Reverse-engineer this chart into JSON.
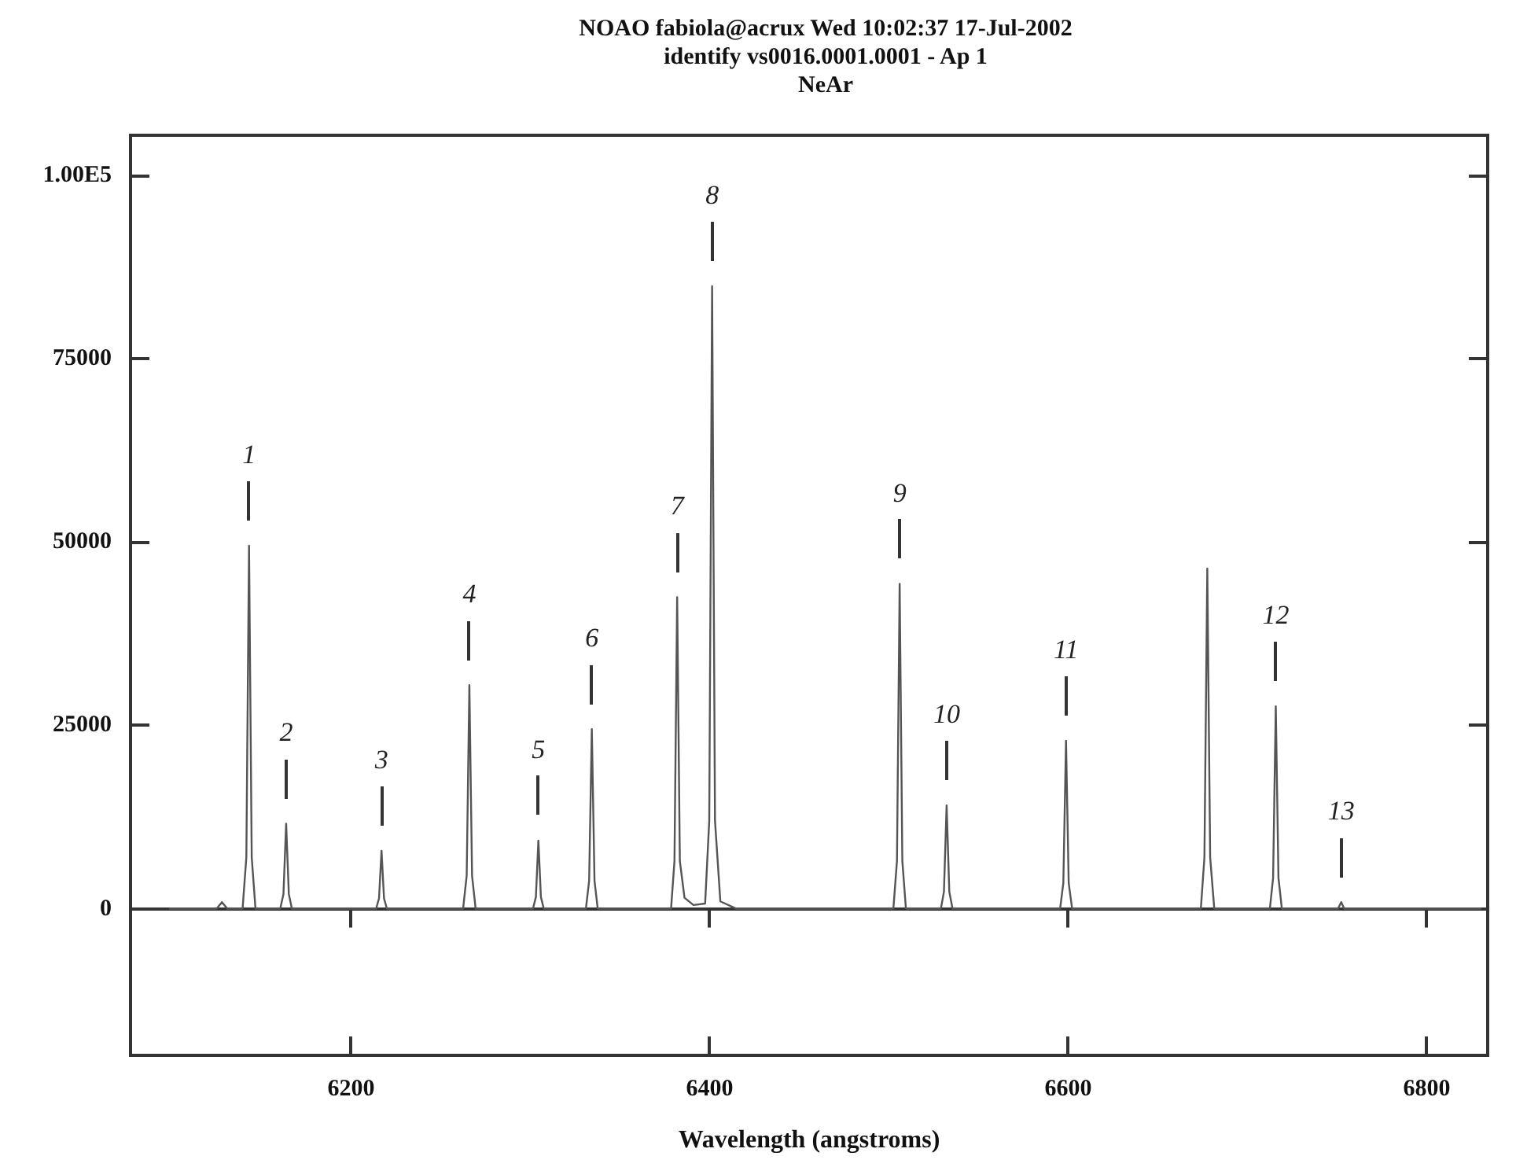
{
  "chart_data": {
    "type": "line",
    "title": "NOAO fabiola@acrux Wed 10:02:37 17-Jul-2002",
    "subtitle": "identify vs0016.0001.0001 - Ap 1",
    "xlabel": "Wavelength (angstroms)",
    "annotations": [
      "NeAr",
      {
        "text": "1",
        "x": 6143.1,
        "y": 49500
      },
      {
        "text": "2",
        "x": 6163.8,
        "y": 11600
      },
      {
        "text": "3",
        "x": 6217,
        "y": 7900
      },
      {
        "text": "4",
        "x": 6266,
        "y": 30500
      },
      {
        "text": "5",
        "x": 6304.5,
        "y": 9300
      },
      {
        "text": "6",
        "x": 6334.3,
        "y": 24500
      },
      {
        "text": "7",
        "x": 6381.9,
        "y": 42500
      },
      {
        "text": "8",
        "x": 6401.4,
        "y": 84900
      },
      {
        "text": "9",
        "x": 6506,
        "y": 44300
      },
      {
        "text": "10",
        "x": 6532.2,
        "y": 14100
      },
      {
        "text": "11",
        "x": 6598.8,
        "y": 22900
      },
      {
        "text": "12",
        "x": 6715.8,
        "y": 27600
      },
      {
        "text": "13",
        "x": 6752.3,
        "y": 900
      }
    ],
    "xlim": [
      6077,
      6834
    ],
    "xticks": [
      6200,
      6400,
      6600,
      6800
    ],
    "ylim": [
      -20000,
      105500
    ],
    "yticks": [
      0,
      25000,
      50000,
      75000,
      {
        "value": 100000,
        "label": "1.00E5"
      }
    ],
    "marker": "none",
    "line_style": "solid",
    "series": [
      {
        "color": "#555555",
        "x": [
          6099,
          6125,
          6128,
          6131,
          6139.5,
          6141.6,
          6143.1,
          6144.6,
          6146.7,
          6160.5,
          6162.3,
          6163.8,
          6165.3,
          6167,
          6214,
          6215.6,
          6217,
          6218.4,
          6220,
          6262.5,
          6264.5,
          6266,
          6267.5,
          6269.5,
          6301.5,
          6303.1,
          6304.5,
          6305.9,
          6307.5,
          6331,
          6332.8,
          6334.3,
          6335.8,
          6337.6,
          6378.5,
          6380.4,
          6381.9,
          6383.4,
          6386,
          6391,
          6397.5,
          6399.8,
          6401.4,
          6403,
          6406,
          6415,
          6502.5,
          6504.5,
          6506,
          6507.5,
          6509.5,
          6529,
          6530.7,
          6532.2,
          6533.7,
          6535.5,
          6595.5,
          6597.3,
          6598.8,
          6600.3,
          6602.2,
          6674,
          6676,
          6677.6,
          6679.2,
          6681.5,
          6712.5,
          6714.3,
          6715.8,
          6717.3,
          6719.2,
          6750.5,
          6752.3,
          6754,
          6830
        ],
        "values": [
          0,
          0,
          900,
          0,
          0,
          7000,
          49500,
          7000,
          0,
          0,
          2000,
          11600,
          2000,
          0,
          0,
          1400,
          7900,
          1400,
          0,
          0,
          4500,
          30500,
          4500,
          0,
          0,
          1600,
          9300,
          1600,
          0,
          0,
          3800,
          24500,
          3800,
          0,
          0,
          6500,
          42500,
          6500,
          1500,
          500,
          700,
          12000,
          84900,
          12000,
          1000,
          0,
          0,
          6500,
          44300,
          6500,
          0,
          0,
          2300,
          14100,
          2300,
          0,
          0,
          3500,
          22900,
          3500,
          0,
          0,
          7000,
          46400,
          7000,
          0,
          0,
          4200,
          27600,
          4200,
          0,
          0,
          900,
          0,
          0
        ]
      }
    ]
  }
}
